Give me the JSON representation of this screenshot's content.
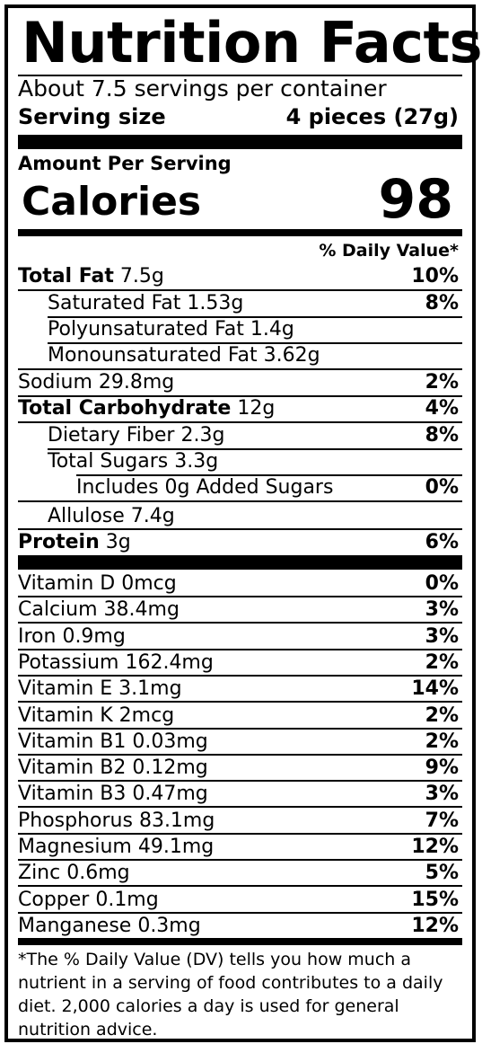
{
  "title": "Nutrition Facts",
  "servings_per_container": "About 7.5 servings per container",
  "serving_size_label": "Serving size",
  "serving_size_value": "4 pieces (27g)",
  "amount_per_serving": "Amount Per Serving",
  "calories_label": "Calories",
  "calories_value": "98",
  "daily_value_header": "% Daily Value*",
  "nutrients": [
    {
      "bold": "Total Fat",
      "amount": "7.5g",
      "dv": "10%"
    },
    {
      "name": "Saturated Fat 1.53g",
      "dv": "8%"
    },
    {
      "name": "Polyunsaturated Fat 1.4g",
      "dv": ""
    },
    {
      "name": "Monounsaturated Fat 3.62g",
      "dv": ""
    },
    {
      "name": "Sodium 29.8mg",
      "dv": "2%"
    },
    {
      "bold": "Total Carbohydrate",
      "amount": "12g",
      "dv": "4%"
    },
    {
      "name": "Dietary Fiber 2.3g",
      "dv": "8%"
    },
    {
      "name": "Total Sugars 3.3g",
      "dv": ""
    },
    {
      "name": "Includes 0g Added Sugars",
      "dv": "0%"
    },
    {
      "name": "Allulose 7.4g",
      "dv": ""
    },
    {
      "bold": "Protein",
      "amount": "3g",
      "dv": "6%"
    }
  ],
  "vitamins": [
    {
      "name": "Vitamin D 0mcg",
      "dv": "0%"
    },
    {
      "name": "Calcium 38.4mg",
      "dv": "3%"
    },
    {
      "name": "Iron 0.9mg",
      "dv": "3%"
    },
    {
      "name": "Potassium 162.4mg",
      "dv": "2%"
    },
    {
      "name": "Vitamin E 3.1mg",
      "dv": "14%"
    },
    {
      "name": "Vitamin K 2mcg",
      "dv": "2%"
    },
    {
      "name": "Vitamin B1 0.03mg",
      "dv": "2%"
    },
    {
      "name": "Vitamin B2 0.12mg",
      "dv": "9%"
    },
    {
      "name": "Vitamin B3 0.47mg",
      "dv": "3%"
    },
    {
      "name": "Phosphorus 83.1mg",
      "dv": "7%"
    },
    {
      "name": "Magnesium 49.1mg",
      "dv": "12%"
    },
    {
      "name": "Zinc 0.6mg",
      "dv": "5%"
    },
    {
      "name": "Copper 0.1mg",
      "dv": "15%"
    },
    {
      "name": "Manganese 0.3mg",
      "dv": "12%"
    }
  ],
  "footnote": "*The % Daily Value (DV) tells you how much a nutrient in a serving of food contributes to a daily diet. 2,000 calories a day is used for general nutrition advice."
}
